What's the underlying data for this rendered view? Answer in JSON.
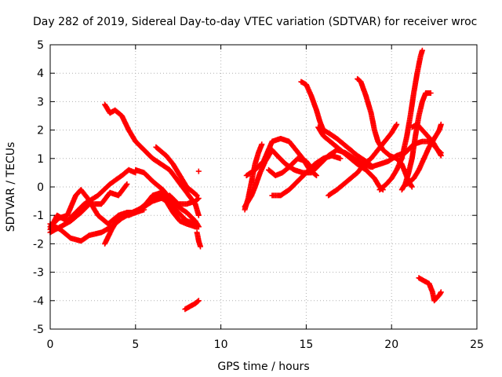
{
  "chart_data": {
    "type": "scatter",
    "title": "Day 282 of 2019, Sidereal Day-to-day VTEC variation (SDTVAR) for receiver wroc",
    "xlabel": "GPS time / hours",
    "ylabel": "SDTVAR / TECUs",
    "xlim": [
      0,
      25
    ],
    "ylim": [
      -5,
      5
    ],
    "x_ticks": [
      0,
      5,
      10,
      15,
      20,
      25
    ],
    "y_ticks": [
      -5,
      -4,
      -3,
      -2,
      -1,
      0,
      1,
      2,
      3,
      4,
      5
    ],
    "grid": true,
    "marker": "+",
    "color": "#ff0000",
    "series": [
      {
        "name": "s1",
        "points": [
          [
            0.0,
            -1.5
          ],
          [
            0.4,
            -1.0
          ],
          [
            1.0,
            -1.2
          ],
          [
            1.5,
            -0.9
          ],
          [
            2.0,
            -0.6
          ],
          [
            2.8,
            -0.3
          ],
          [
            3.5,
            0.1
          ],
          [
            4.2,
            0.4
          ],
          [
            4.6,
            0.6
          ],
          [
            5.0,
            0.5
          ]
        ]
      },
      {
        "name": "s2",
        "points": [
          [
            0.0,
            -1.6
          ],
          [
            0.6,
            -1.4
          ],
          [
            1.2,
            -1.2
          ],
          [
            1.8,
            -0.9
          ],
          [
            2.3,
            -0.6
          ],
          [
            3.0,
            -0.6
          ],
          [
            3.5,
            -0.2
          ],
          [
            4.0,
            -0.3
          ],
          [
            4.5,
            0.1
          ]
        ]
      },
      {
        "name": "s3",
        "points": [
          [
            0.0,
            -1.4
          ],
          [
            0.5,
            -1.1
          ],
          [
            1.0,
            -1.0
          ],
          [
            1.5,
            -0.3
          ],
          [
            1.8,
            -0.1
          ],
          [
            2.2,
            -0.4
          ],
          [
            2.8,
            -1.0
          ],
          [
            3.4,
            -1.3
          ],
          [
            4.0,
            -1.0
          ],
          [
            4.5,
            -0.9
          ],
          [
            5.0,
            -0.9
          ],
          [
            5.5,
            -0.8
          ]
        ]
      },
      {
        "name": "s4",
        "points": [
          [
            0.0,
            -1.3
          ],
          [
            0.6,
            -1.5
          ],
          [
            1.2,
            -1.8
          ],
          [
            1.8,
            -1.9
          ],
          [
            2.3,
            -1.7
          ],
          [
            3.0,
            -1.6
          ],
          [
            3.6,
            -1.4
          ],
          [
            4.2,
            -1.1
          ],
          [
            4.8,
            -0.9
          ],
          [
            5.5,
            -0.7
          ],
          [
            6.0,
            -0.5
          ],
          [
            6.5,
            -0.4
          ],
          [
            7.0,
            -0.3
          ],
          [
            7.5,
            -0.6
          ],
          [
            8.0,
            -0.6
          ],
          [
            8.5,
            -0.5
          ],
          [
            8.7,
            -0.4
          ]
        ]
      },
      {
        "name": "s5",
        "points": [
          [
            3.2,
            2.9
          ],
          [
            3.5,
            2.6
          ],
          [
            3.8,
            2.7
          ],
          [
            4.2,
            2.5
          ],
          [
            4.6,
            2.0
          ],
          [
            5.0,
            1.6
          ],
          [
            5.5,
            1.3
          ],
          [
            6.0,
            1.0
          ],
          [
            6.5,
            0.8
          ],
          [
            7.0,
            0.6
          ],
          [
            7.5,
            0.2
          ],
          [
            8.0,
            -0.2
          ],
          [
            8.5,
            -0.6
          ],
          [
            8.7,
            -1.0
          ]
        ]
      },
      {
        "name": "s6",
        "points": [
          [
            3.2,
            -2.0
          ],
          [
            3.6,
            -1.5
          ],
          [
            4.0,
            -1.1
          ],
          [
            4.5,
            -0.9
          ],
          [
            5.0,
            -0.9
          ],
          [
            5.5,
            -0.7
          ],
          [
            6.0,
            -0.4
          ],
          [
            6.3,
            -0.3
          ],
          [
            6.8,
            -0.5
          ],
          [
            7.2,
            -0.9
          ],
          [
            7.6,
            -1.2
          ],
          [
            8.0,
            -1.3
          ],
          [
            8.5,
            -1.4
          ],
          [
            8.7,
            -1.4
          ]
        ]
      },
      {
        "name": "s7",
        "points": [
          [
            4.6,
            -1.0
          ],
          [
            5.0,
            -0.9
          ],
          [
            5.6,
            -0.6
          ],
          [
            6.0,
            -0.3
          ],
          [
            6.5,
            -0.2
          ],
          [
            7.0,
            -0.6
          ],
          [
            7.5,
            -0.9
          ],
          [
            8.0,
            -1.2
          ],
          [
            8.6,
            -1.3
          ]
        ]
      },
      {
        "name": "s8",
        "points": [
          [
            5.0,
            0.6
          ],
          [
            5.5,
            0.5
          ],
          [
            6.0,
            0.2
          ],
          [
            6.6,
            -0.1
          ],
          [
            7.0,
            -0.4
          ],
          [
            7.5,
            -0.7
          ],
          [
            8.0,
            -0.9
          ],
          [
            8.5,
            -1.2
          ],
          [
            8.7,
            -1.4
          ]
        ]
      },
      {
        "name": "s9",
        "points": [
          [
            6.2,
            1.4
          ],
          [
            6.8,
            1.1
          ],
          [
            7.2,
            0.8
          ],
          [
            7.6,
            0.4
          ],
          [
            8.0,
            0.0
          ],
          [
            8.4,
            -0.2
          ],
          [
            8.6,
            -0.3
          ]
        ]
      },
      {
        "name": "s10",
        "points": [
          [
            8.6,
            -1.6
          ],
          [
            8.7,
            -1.9
          ],
          [
            8.8,
            -2.1
          ]
        ]
      },
      {
        "name": "s11",
        "points": [
          [
            8.7,
            0.55
          ]
        ]
      },
      {
        "name": "s12",
        "points": [
          [
            7.9,
            -4.3
          ],
          [
            8.2,
            -4.2
          ],
          [
            8.5,
            -4.1
          ],
          [
            8.7,
            -4.0
          ]
        ]
      },
      {
        "name": "s13",
        "points": [
          [
            11.4,
            -0.8
          ],
          [
            11.6,
            -0.4
          ],
          [
            11.8,
            0.2
          ],
          [
            12.0,
            0.8
          ],
          [
            12.2,
            1.2
          ],
          [
            12.4,
            1.5
          ]
        ]
      },
      {
        "name": "s14",
        "points": [
          [
            11.4,
            -0.7
          ],
          [
            11.6,
            -0.5
          ],
          [
            11.8,
            -0.3
          ],
          [
            12.0,
            0.0
          ],
          [
            12.3,
            0.5
          ],
          [
            12.6,
            0.9
          ],
          [
            13.0,
            1.3
          ],
          [
            13.3,
            1.1
          ],
          [
            13.8,
            0.8
          ],
          [
            14.3,
            0.6
          ],
          [
            14.8,
            0.5
          ],
          [
            15.3,
            0.5
          ],
          [
            15.8,
            0.8
          ],
          [
            16.3,
            1.1
          ],
          [
            16.8,
            1.3
          ],
          [
            17.3,
            1.2
          ],
          [
            17.8,
            1.0
          ],
          [
            18.3,
            0.8
          ],
          [
            18.8,
            0.7
          ],
          [
            19.3,
            0.8
          ],
          [
            19.8,
            0.9
          ],
          [
            20.3,
            1.1
          ],
          [
            20.8,
            1.2
          ],
          [
            21.3,
            1.5
          ],
          [
            21.8,
            1.6
          ],
          [
            22.3,
            1.6
          ],
          [
            22.7,
            1.3
          ],
          [
            22.9,
            1.1
          ]
        ]
      },
      {
        "name": "s15",
        "points": [
          [
            11.5,
            0.4
          ],
          [
            12.0,
            0.6
          ],
          [
            12.5,
            0.9
          ],
          [
            13.0,
            1.6
          ],
          [
            13.5,
            1.7
          ],
          [
            14.0,
            1.6
          ],
          [
            14.4,
            1.3
          ],
          [
            14.8,
            1.0
          ],
          [
            15.2,
            0.6
          ],
          [
            15.6,
            0.4
          ]
        ]
      },
      {
        "name": "s16",
        "points": [
          [
            12.8,
            0.6
          ],
          [
            13.2,
            0.4
          ],
          [
            13.6,
            0.5
          ],
          [
            14.0,
            0.7
          ],
          [
            14.5,
            1.0
          ],
          [
            15.0,
            0.9
          ],
          [
            15.4,
            0.6
          ]
        ]
      },
      {
        "name": "s17",
        "points": [
          [
            13.0,
            -0.3
          ],
          [
            13.5,
            -0.3
          ],
          [
            14.0,
            -0.1
          ],
          [
            14.5,
            0.2
          ],
          [
            15.0,
            0.5
          ],
          [
            15.5,
            0.8
          ],
          [
            16.0,
            1.0
          ],
          [
            16.5,
            1.1
          ],
          [
            17.0,
            1.0
          ]
        ]
      },
      {
        "name": "s18",
        "points": [
          [
            14.7,
            3.7
          ],
          [
            15.0,
            3.6
          ],
          [
            15.3,
            3.2
          ],
          [
            15.6,
            2.7
          ],
          [
            15.8,
            2.3
          ],
          [
            16.0,
            2.0
          ],
          [
            16.3,
            1.9
          ],
          [
            16.8,
            1.7
          ],
          [
            17.2,
            1.5
          ],
          [
            17.6,
            1.3
          ],
          [
            18.0,
            1.1
          ],
          [
            18.5,
            0.9
          ],
          [
            18.9,
            0.7
          ]
        ]
      },
      {
        "name": "s19",
        "points": [
          [
            15.7,
            2.1
          ],
          [
            16.0,
            1.8
          ],
          [
            16.4,
            1.6
          ],
          [
            16.8,
            1.4
          ],
          [
            17.2,
            1.2
          ],
          [
            17.6,
            1.0
          ],
          [
            18.0,
            0.8
          ],
          [
            18.5,
            0.6
          ],
          [
            19.0,
            0.3
          ],
          [
            19.3,
            0.0
          ],
          [
            19.5,
            -0.1
          ]
        ]
      },
      {
        "name": "s20",
        "points": [
          [
            16.3,
            -0.3
          ],
          [
            16.8,
            -0.1
          ],
          [
            17.2,
            0.1
          ],
          [
            17.6,
            0.3
          ],
          [
            18.0,
            0.5
          ],
          [
            18.4,
            0.8
          ],
          [
            18.8,
            1.0
          ],
          [
            19.2,
            1.3
          ],
          [
            19.6,
            1.6
          ],
          [
            20.0,
            1.9
          ],
          [
            20.3,
            2.2
          ]
        ]
      },
      {
        "name": "s21",
        "points": [
          [
            18.0,
            3.8
          ],
          [
            18.2,
            3.7
          ],
          [
            18.5,
            3.2
          ],
          [
            18.8,
            2.6
          ],
          [
            19.0,
            2.0
          ],
          [
            19.2,
            1.6
          ],
          [
            19.5,
            1.3
          ],
          [
            19.9,
            1.1
          ],
          [
            20.3,
            1.0
          ],
          [
            20.6,
            0.8
          ],
          [
            20.8,
            0.5
          ],
          [
            21.0,
            0.2
          ],
          [
            21.2,
            0.0
          ]
        ]
      },
      {
        "name": "s22",
        "points": [
          [
            19.3,
            -0.1
          ],
          [
            19.7,
            0.1
          ],
          [
            20.0,
            0.3
          ],
          [
            20.3,
            0.6
          ],
          [
            20.6,
            1.0
          ],
          [
            20.9,
            1.8
          ],
          [
            21.1,
            2.5
          ],
          [
            21.3,
            3.3
          ],
          [
            21.5,
            4.0
          ],
          [
            21.7,
            4.6
          ],
          [
            21.8,
            4.8
          ]
        ]
      },
      {
        "name": "s23",
        "points": [
          [
            20.6,
            -0.1
          ],
          [
            20.8,
            0.1
          ],
          [
            21.0,
            0.5
          ],
          [
            21.2,
            1.0
          ],
          [
            21.4,
            1.8
          ],
          [
            21.6,
            2.5
          ],
          [
            21.8,
            3.0
          ],
          [
            22.0,
            3.3
          ],
          [
            22.3,
            3.3
          ]
        ]
      },
      {
        "name": "s24",
        "points": [
          [
            20.9,
            0.1
          ],
          [
            21.1,
            0.2
          ],
          [
            21.3,
            0.3
          ],
          [
            21.6,
            0.6
          ],
          [
            21.9,
            1.0
          ],
          [
            22.2,
            1.4
          ],
          [
            22.5,
            1.7
          ],
          [
            22.8,
            2.0
          ],
          [
            22.9,
            2.2
          ]
        ]
      },
      {
        "name": "s25",
        "points": [
          [
            21.2,
            2.1
          ],
          [
            21.5,
            2.2
          ],
          [
            21.8,
            2.0
          ],
          [
            22.1,
            1.8
          ],
          [
            22.4,
            1.6
          ],
          [
            22.7,
            1.3
          ],
          [
            22.9,
            1.2
          ]
        ]
      },
      {
        "name": "s26",
        "points": [
          [
            21.6,
            -3.2
          ],
          [
            21.9,
            -3.3
          ],
          [
            22.2,
            -3.4
          ],
          [
            22.4,
            -3.7
          ],
          [
            22.5,
            -4.0
          ],
          [
            22.8,
            -3.8
          ],
          [
            22.9,
            -3.7
          ]
        ]
      }
    ]
  }
}
